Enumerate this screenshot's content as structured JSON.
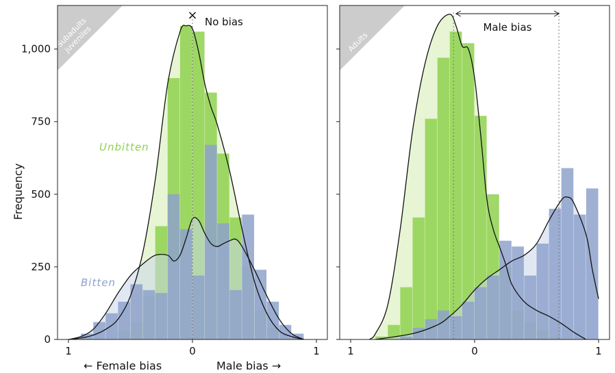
{
  "ylabel": "Frequency",
  "xlabel_left": "← Female bias",
  "xlabel_right": "Male bias →",
  "colors": {
    "unbitten": "#8fd14f",
    "unbitten_light": "#d4ecb1",
    "bitten": "#8ea2cb",
    "bitten_light": "#cbd5ea",
    "corner": "#cccccc"
  },
  "chart_data": [
    {
      "type": "histogram",
      "panel": "Subadults juveniles",
      "corner_label_lines": [
        "Subadults",
        "juveniles"
      ],
      "ylim": [
        0,
        1150
      ],
      "yticks": [
        0,
        250,
        500,
        750,
        1000
      ],
      "ytick_labels": [
        "0",
        "250",
        "500",
        "750",
        "1,000"
      ],
      "xlim": [
        -1,
        1
      ],
      "xticks": [
        -1,
        0,
        1
      ],
      "xtick_labels": [
        "1",
        "0",
        "1"
      ],
      "reference_line": {
        "x": 0.0,
        "marker": "×",
        "label": "No bias"
      },
      "bins": [
        -0.9,
        -0.8,
        -0.7,
        -0.6,
        -0.5,
        -0.4,
        -0.3,
        -0.2,
        -0.1,
        0.0,
        0.1,
        0.2,
        0.3,
        0.4,
        0.5,
        0.6,
        0.7,
        0.8,
        0.9
      ],
      "series": [
        {
          "name": "Unbitten",
          "counts": [
            0,
            0,
            0,
            30,
            60,
            150,
            390,
            900,
            1080,
            1060,
            850,
            640,
            420,
            250,
            100,
            40,
            0,
            0
          ],
          "density": [
            [
              -1,
              0
            ],
            [
              -0.9,
              5
            ],
            [
              -0.8,
              15
            ],
            [
              -0.7,
              35
            ],
            [
              -0.6,
              70
            ],
            [
              -0.5,
              150
            ],
            [
              -0.4,
              300
            ],
            [
              -0.3,
              550
            ],
            [
              -0.2,
              880
            ],
            [
              -0.1,
              1060
            ],
            [
              -0.05,
              1080
            ],
            [
              0,
              1070
            ],
            [
              0.05,
              990
            ],
            [
              0.1,
              880
            ],
            [
              0.15,
              800
            ],
            [
              0.2,
              740
            ],
            [
              0.3,
              580
            ],
            [
              0.4,
              380
            ],
            [
              0.5,
              200
            ],
            [
              0.6,
              90
            ],
            [
              0.7,
              30
            ],
            [
              0.8,
              10
            ],
            [
              0.9,
              0
            ]
          ],
          "label": "Unbitten"
        },
        {
          "name": "Bitten",
          "counts": [
            20,
            60,
            90,
            130,
            190,
            170,
            160,
            500,
            380,
            220,
            670,
            400,
            170,
            430,
            240,
            130,
            50,
            20
          ],
          "density": [
            [
              -1,
              0
            ],
            [
              -0.9,
              10
            ],
            [
              -0.8,
              35
            ],
            [
              -0.7,
              90
            ],
            [
              -0.6,
              160
            ],
            [
              -0.5,
              220
            ],
            [
              -0.4,
              260
            ],
            [
              -0.3,
              290
            ],
            [
              -0.2,
              290
            ],
            [
              -0.15,
              270
            ],
            [
              -0.1,
              290
            ],
            [
              -0.05,
              350
            ],
            [
              0,
              415
            ],
            [
              0.05,
              410
            ],
            [
              0.1,
              365
            ],
            [
              0.15,
              330
            ],
            [
              0.2,
              320
            ],
            [
              0.25,
              330
            ],
            [
              0.3,
              340
            ],
            [
              0.35,
              345
            ],
            [
              0.4,
              320
            ],
            [
              0.5,
              240
            ],
            [
              0.6,
              150
            ],
            [
              0.7,
              70
            ],
            [
              0.8,
              20
            ],
            [
              0.9,
              0
            ]
          ],
          "label": "Bitten"
        }
      ]
    },
    {
      "type": "histogram",
      "panel": "Adults",
      "corner_label_lines": [
        "Adults"
      ],
      "ylim": [
        0,
        1150
      ],
      "xlim": [
        -1,
        1
      ],
      "xticks": [
        -1,
        0,
        1
      ],
      "xtick_labels": [
        "1",
        "0",
        "1"
      ],
      "reference_lines": [
        -0.17,
        0.68
      ],
      "span_annotation": {
        "from": -0.15,
        "to": 0.68,
        "label": "Male bias"
      },
      "bins": [
        -0.8,
        -0.7,
        -0.6,
        -0.5,
        -0.4,
        -0.3,
        -0.2,
        -0.1,
        0.0,
        0.1,
        0.2,
        0.3,
        0.4,
        0.5,
        0.6,
        0.7,
        0.8,
        0.9,
        1.0
      ],
      "series": [
        {
          "name": "Unbitten",
          "counts": [
            10,
            50,
            180,
            420,
            760,
            970,
            1060,
            1020,
            770,
            500,
            250,
            100,
            60,
            30,
            10,
            0,
            0,
            0
          ],
          "density": [
            [
              -0.85,
              0
            ],
            [
              -0.8,
              20
            ],
            [
              -0.7,
              120
            ],
            [
              -0.6,
              380
            ],
            [
              -0.5,
              720
            ],
            [
              -0.4,
              950
            ],
            [
              -0.3,
              1080
            ],
            [
              -0.2,
              1120
            ],
            [
              -0.15,
              1080
            ],
            [
              -0.1,
              1010
            ],
            [
              -0.05,
              1000
            ],
            [
              0,
              900
            ],
            [
              0.05,
              700
            ],
            [
              0.1,
              480
            ],
            [
              0.15,
              380
            ],
            [
              0.2,
              320
            ],
            [
              0.25,
              260
            ],
            [
              0.3,
              190
            ],
            [
              0.4,
              130
            ],
            [
              0.5,
              100
            ],
            [
              0.6,
              80
            ],
            [
              0.7,
              55
            ],
            [
              0.8,
              25
            ],
            [
              0.9,
              0
            ]
          ],
          "label": ""
        },
        {
          "name": "Bitten",
          "counts": [
            0,
            0,
            10,
            40,
            70,
            100,
            80,
            130,
            180,
            220,
            340,
            320,
            220,
            330,
            450,
            590,
            430,
            520
          ],
          "density": [
            [
              -0.8,
              0
            ],
            [
              -0.5,
              20
            ],
            [
              -0.3,
              50
            ],
            [
              -0.2,
              80
            ],
            [
              -0.1,
              120
            ],
            [
              0,
              170
            ],
            [
              0.1,
              210
            ],
            [
              0.2,
              240
            ],
            [
              0.3,
              270
            ],
            [
              0.4,
              290
            ],
            [
              0.5,
              330
            ],
            [
              0.6,
              410
            ],
            [
              0.7,
              480
            ],
            [
              0.75,
              490
            ],
            [
              0.8,
              470
            ],
            [
              0.9,
              360
            ],
            [
              0.95,
              240
            ],
            [
              1.0,
              140
            ]
          ],
          "label": ""
        }
      ]
    }
  ]
}
